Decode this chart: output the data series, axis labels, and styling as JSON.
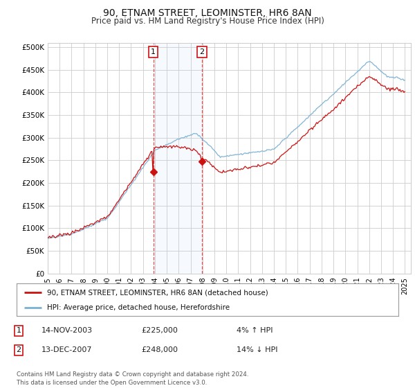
{
  "title": "90, ETNAM STREET, LEOMINSTER, HR6 8AN",
  "subtitle": "Price paid vs. HM Land Registry's House Price Index (HPI)",
  "yticks": [
    0,
    50000,
    100000,
    150000,
    200000,
    250000,
    300000,
    350000,
    400000,
    450000,
    500000
  ],
  "xlim_start": 1995.0,
  "xlim_end": 2025.5,
  "ylim": [
    0,
    510000
  ],
  "hpi_color": "#7ab0d4",
  "price_color": "#cc1111",
  "transaction1_date": 2003.87,
  "transaction1_price": 225000,
  "transaction2_date": 2007.95,
  "transaction2_price": 248000,
  "shade_color": "#ddeeff",
  "legend_house_label": "90, ETNAM STREET, LEOMINSTER, HR6 8AN (detached house)",
  "legend_hpi_label": "HPI: Average price, detached house, Herefordshire",
  "table_row1": [
    "1",
    "14-NOV-2003",
    "£225,000",
    "4% ↑ HPI"
  ],
  "table_row2": [
    "2",
    "13-DEC-2007",
    "£248,000",
    "14% ↓ HPI"
  ],
  "footer": "Contains HM Land Registry data © Crown copyright and database right 2024.\nThis data is licensed under the Open Government Licence v3.0.",
  "background_color": "#ffffff",
  "grid_color": "#cccccc"
}
